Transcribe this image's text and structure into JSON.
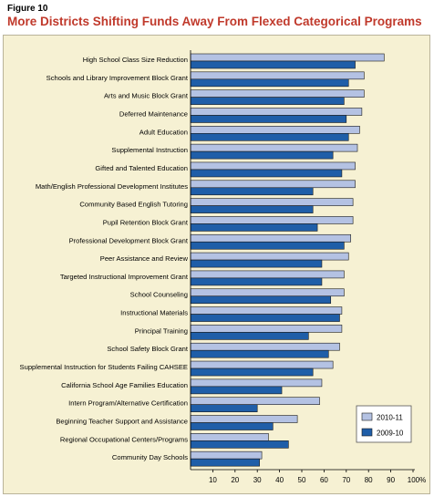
{
  "figure": {
    "label": "Figure 10",
    "title": "More Districts Shifting Funds Away From Flexed Categorical Programs"
  },
  "chart_data": {
    "type": "bar",
    "orientation": "horizontal",
    "categories": [
      "High School Class Size Reduction",
      "Schools and Library Improvement Block Grant",
      "Arts and Music Block Grant",
      "Deferred Maintenance",
      "Adult Education",
      "Supplemental Instruction",
      "Gifted and Talented Education",
      "Math/English Professional Development Institutes",
      "Community Based English Tutoring",
      "Pupil Retention Block Grant",
      "Professional Development Block Grant",
      "Peer Assistance and Review",
      "Targeted Instructional Improvement Grant",
      "School Counseling",
      "Instructional Materials",
      "Principal Training",
      "School Safety Block Grant",
      "Supplemental Instruction for Students Failing CAHSEE",
      "California School Age Families Education",
      "Intern Program/Alternative Certification",
      "Beginning Teacher Support and Assistance",
      "Regional Occupational Centers/Programs",
      "Community Day Schools"
    ],
    "series": [
      {
        "name": "2010-11",
        "color": "#b4c2e3",
        "values": [
          87,
          78,
          78,
          77,
          76,
          75,
          74,
          74,
          73,
          73,
          72,
          71,
          69,
          69,
          68,
          68,
          67,
          64,
          59,
          58,
          48,
          35,
          32
        ]
      },
      {
        "name": "2009-10",
        "color": "#1f5ea8",
        "values": [
          74,
          71,
          69,
          70,
          71,
          64,
          68,
          55,
          55,
          57,
          69,
          59,
          59,
          63,
          67,
          53,
          62,
          55,
          41,
          30,
          37,
          44,
          31
        ]
      }
    ],
    "x_ticks": [
      "10",
      "20",
      "30",
      "40",
      "50",
      "60",
      "70",
      "80",
      "90",
      "100%"
    ],
    "xlim": [
      0,
      100
    ],
    "grid": false,
    "legend_position": "bottom-right"
  }
}
